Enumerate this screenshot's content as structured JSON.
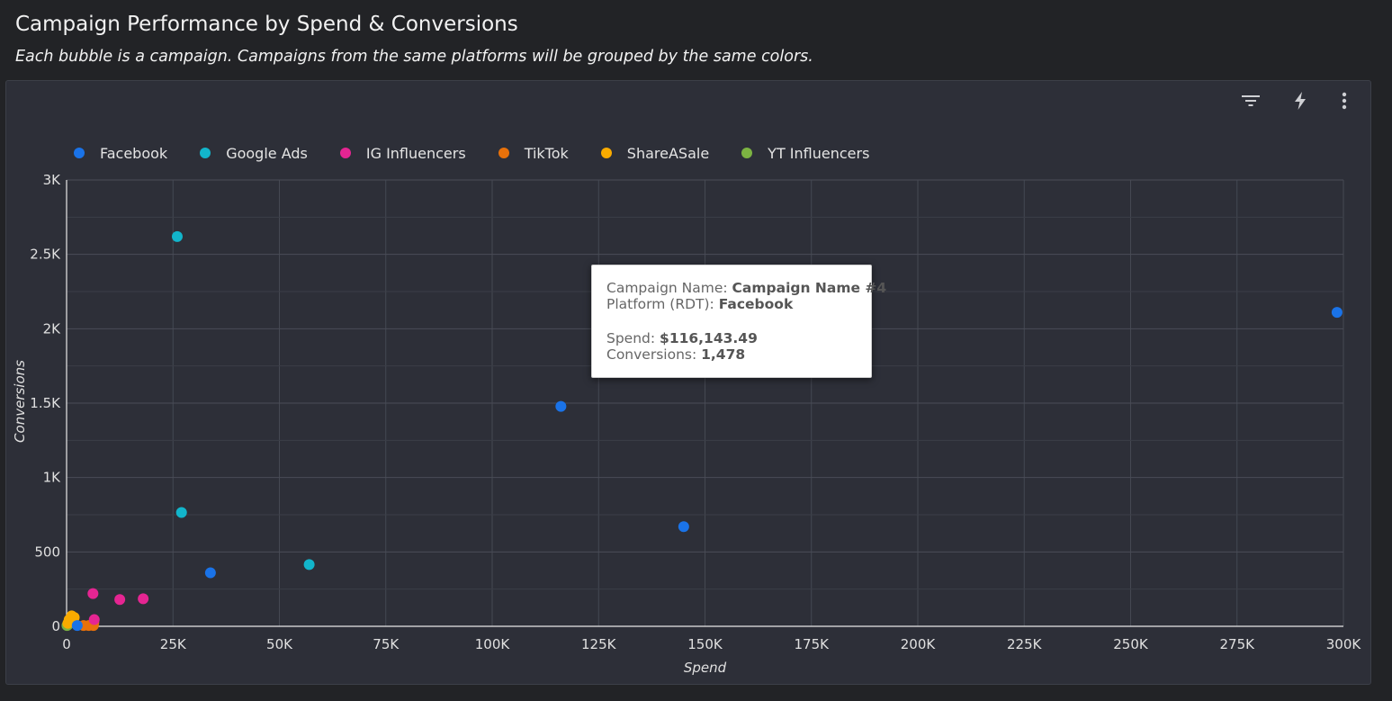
{
  "header": {
    "title": "Campaign Performance by Spend & Conversions",
    "subtitle": "Each bubble is a campaign. Campaigns from the same platforms will be grouped by the same colors."
  },
  "toolbar": {
    "icons": [
      "filter-icon",
      "lightning-icon",
      "more-vert-icon"
    ]
  },
  "chart_data": {
    "type": "scatter",
    "xlabel": "Spend",
    "ylabel": "Conversions",
    "xlim": [
      0,
      300000
    ],
    "ylim": [
      0,
      3000
    ],
    "x_ticks": [
      0,
      25000,
      50000,
      75000,
      100000,
      125000,
      150000,
      175000,
      200000,
      225000,
      250000,
      275000,
      300000
    ],
    "x_tick_labels": [
      "0",
      "25K",
      "50K",
      "75K",
      "100K",
      "125K",
      "150K",
      "175K",
      "200K",
      "225K",
      "250K",
      "275K",
      "300K"
    ],
    "y_ticks": [
      0,
      500,
      1000,
      1500,
      2000,
      2500,
      3000
    ],
    "y_tick_labels": [
      "0",
      "500",
      "1K",
      "1.5K",
      "2K",
      "2.5K",
      "3K"
    ],
    "grid": true,
    "legend_position": "top-left",
    "series": [
      {
        "name": "Facebook",
        "color": "#1a73e8",
        "points": [
          [
            116143.49,
            1478
          ],
          [
            145000,
            670
          ],
          [
            298500,
            2110
          ],
          [
            33800,
            360
          ],
          [
            2500,
            5
          ]
        ]
      },
      {
        "name": "Google Ads",
        "color": "#12b5cb",
        "points": [
          [
            26000,
            2620
          ],
          [
            27000,
            765
          ],
          [
            57000,
            415
          ]
        ]
      },
      {
        "name": "IG Influencers",
        "color": "#e52592",
        "points": [
          [
            6200,
            220
          ],
          [
            12500,
            180
          ],
          [
            18000,
            185
          ],
          [
            6500,
            45
          ]
        ]
      },
      {
        "name": "TikTok",
        "color": "#e8710a",
        "points": [
          [
            4000,
            5
          ],
          [
            5200,
            5
          ],
          [
            6400,
            25
          ],
          [
            6300,
            5
          ]
        ]
      },
      {
        "name": "ShareASale",
        "color": "#f9ab00",
        "points": [
          [
            1200,
            70
          ],
          [
            600,
            45
          ],
          [
            300,
            20
          ],
          [
            1800,
            60
          ]
        ]
      },
      {
        "name": "YT Influencers",
        "color": "#7cb342",
        "points": [
          [
            100,
            5
          ],
          [
            300,
            10
          ]
        ]
      }
    ]
  },
  "tooltip": {
    "campaign_label": "Campaign Name: ",
    "campaign_value": "Campaign Name #4",
    "platform_label": "Platform (RDT): ",
    "platform_value": "Facebook",
    "spend_label": "Spend: ",
    "spend_value": "$116,143.49",
    "conversions_label": "Conversions: ",
    "conversions_value": "1,478"
  }
}
